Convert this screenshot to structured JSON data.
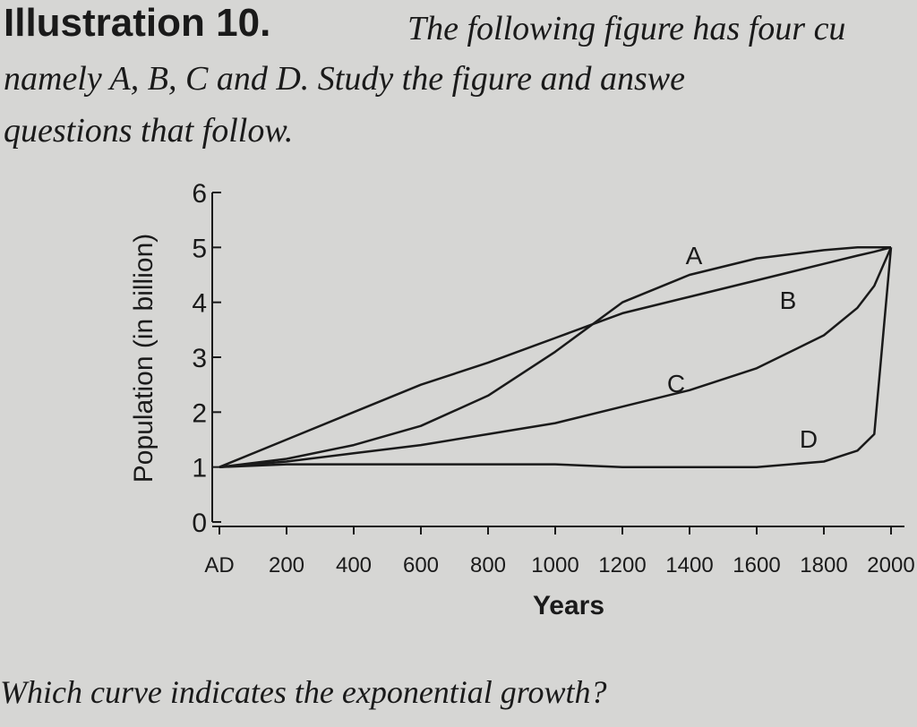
{
  "header": {
    "label": "Illustration 10.",
    "lines": [
      "The following figure has four cu",
      "namely A, B, C and D. Study the figure and answe",
      "questions that follow."
    ]
  },
  "chart_data": {
    "type": "line",
    "x": [
      0,
      200,
      400,
      600,
      800,
      1000,
      1200,
      1400,
      1600,
      1800,
      1900,
      1950,
      2000
    ],
    "series": [
      {
        "name": "A",
        "color": "#1a1a1a",
        "values": [
          1,
          1.15,
          1.4,
          1.75,
          2.3,
          3.1,
          4.0,
          4.5,
          4.8,
          4.95,
          5.0,
          5.0,
          5.0
        ]
      },
      {
        "name": "B",
        "color": "#1a1a1a",
        "values": [
          1,
          1.5,
          2.0,
          2.5,
          2.9,
          3.35,
          3.8,
          4.1,
          4.4,
          4.7,
          4.85,
          4.92,
          5.0
        ]
      },
      {
        "name": "C",
        "color": "#1a1a1a",
        "values": [
          1,
          1.1,
          1.25,
          1.4,
          1.6,
          1.8,
          2.1,
          2.4,
          2.8,
          3.4,
          3.9,
          4.3,
          5.0
        ]
      },
      {
        "name": "D",
        "color": "#1a1a1a",
        "values": [
          1,
          1.05,
          1.05,
          1.05,
          1.05,
          1.05,
          1.0,
          1.0,
          1.0,
          1.1,
          1.3,
          1.6,
          5.0
        ]
      }
    ],
    "xlabel": "Years",
    "ylabel": "Population (in billion)",
    "xlim": [
      0,
      2000
    ],
    "ylim": [
      0,
      6
    ],
    "xticks": [
      {
        "value": 0,
        "label": "AD"
      },
      200,
      400,
      600,
      800,
      1000,
      1200,
      1400,
      1600,
      1800,
      2000
    ],
    "yticks": [
      0,
      1,
      2,
      3,
      4,
      5,
      6
    ]
  },
  "question": "Which curve indicates the exponential growth?"
}
